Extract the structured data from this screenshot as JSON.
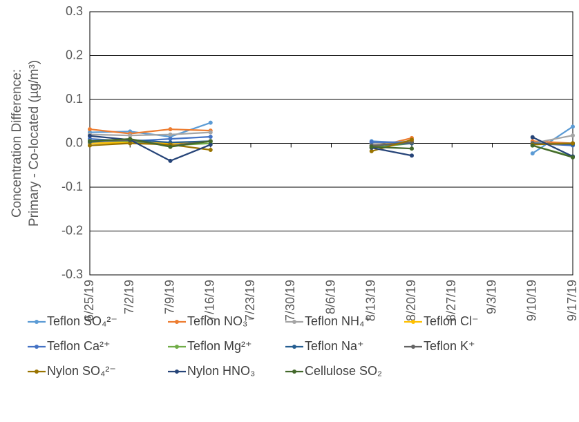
{
  "chart_data": {
    "type": "line",
    "ylabel": [
      "Concentration Difference:",
      "Primary - Co-located (µg/m³)"
    ],
    "categories": [
      "6/25/19",
      "7/2/19",
      "7/9/19",
      "7/16/19",
      "7/23/19",
      "7/30/19",
      "8/6/19",
      "8/13/19",
      "8/20/19",
      "8/27/19",
      "9/3/19",
      "9/10/19",
      "9/17/19"
    ],
    "ylim": [
      -0.3,
      0.3
    ],
    "yticks": [
      -0.3,
      -0.2,
      -0.1,
      {
        "value": 0,
        "label": "0.0"
      },
      0.1,
      0.2,
      0.3
    ],
    "grid": true,
    "legend": "bottom",
    "series": [
      {
        "name": "Teflon SO₄²⁻",
        "color": "#5b9bd5",
        "values": [
          0.025,
          0.027,
          0.015,
          0.047,
          null,
          null,
          null,
          0.005,
          0.0,
          null,
          null,
          -0.023,
          0.038
        ]
      },
      {
        "name": "Teflon NO₃⁻",
        "color": "#ed7d31",
        "values": [
          0.032,
          0.022,
          0.032,
          0.029,
          null,
          null,
          null,
          -0.01,
          0.012,
          null,
          null,
          0.005,
          0.0
        ]
      },
      {
        "name": "Teflon NH₄⁺",
        "color": "#a5a5a5",
        "values": [
          0.02,
          0.018,
          0.02,
          0.025,
          null,
          null,
          null,
          0.0,
          0.005,
          null,
          null,
          0.0,
          0.018
        ]
      },
      {
        "name": "Teflon Cl⁻",
        "color": "#ffc000",
        "values": [
          0.0,
          0.002,
          0.0,
          0.005,
          null,
          null,
          null,
          -0.005,
          0.003,
          null,
          null,
          -0.002,
          0.0
        ]
      },
      {
        "name": "Teflon Ca²⁺",
        "color": "#4472c4",
        "values": [
          0.01,
          0.005,
          0.01,
          0.015,
          null,
          null,
          null,
          0.003,
          0.002,
          null,
          null,
          0.0,
          -0.005
        ]
      },
      {
        "name": "Teflon Mg²⁺",
        "color": "#70ad47",
        "values": [
          0.005,
          0.005,
          -0.005,
          0.0,
          null,
          null,
          null,
          -0.01,
          0.0,
          null,
          null,
          -0.005,
          -0.03
        ]
      },
      {
        "name": "Teflon Na⁺",
        "color": "#255e91",
        "values": [
          0.003,
          0.008,
          0.002,
          0.005,
          null,
          null,
          null,
          -0.005,
          0.0,
          null,
          null,
          0.0,
          -0.002
        ]
      },
      {
        "name": "Teflon K⁺",
        "color": "#636363",
        "values": [
          0.005,
          0.007,
          -0.005,
          0.005,
          null,
          null,
          null,
          -0.005,
          0.002,
          null,
          null,
          -0.002,
          0.0
        ]
      },
      {
        "name": "Nylon SO₄²⁻",
        "color": "#997300",
        "values": [
          -0.005,
          0.0,
          -0.003,
          -0.015,
          null,
          null,
          null,
          -0.018,
          0.008,
          null,
          null,
          -0.003,
          0.0
        ]
      },
      {
        "name": "Nylon HNO₃",
        "color": "#264478",
        "values": [
          0.017,
          0.008,
          -0.04,
          -0.003,
          null,
          null,
          null,
          -0.01,
          -0.028,
          null,
          null,
          0.014,
          -0.03
        ]
      },
      {
        "name": "Cellulose SO₂",
        "color": "#43682b",
        "values": [
          0.005,
          0.01,
          -0.008,
          0.005,
          null,
          null,
          null,
          -0.008,
          -0.012,
          null,
          null,
          -0.005,
          -0.032
        ]
      }
    ]
  }
}
